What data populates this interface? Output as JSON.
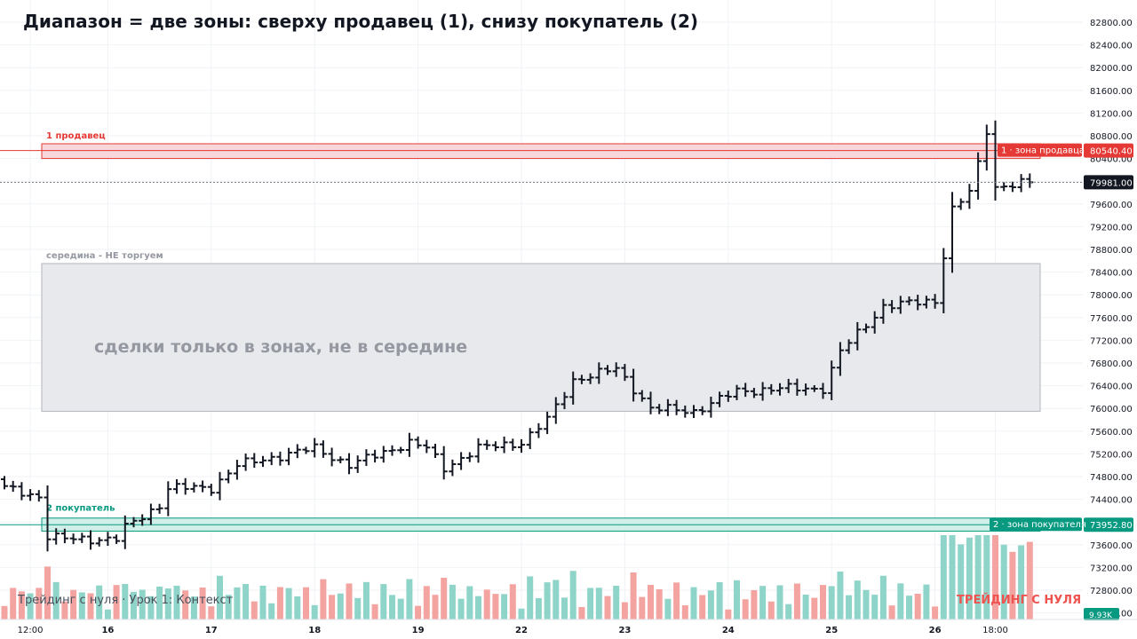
{
  "title": "Диапазон = две зоны: сверху продавец (1), снизу покупатель (2)",
  "watermark_left": "Трейдинг с нуля · Урок 1: Контекст",
  "watermark_right": "ТРЕЙДИНГ С НУЛЯ",
  "colors": {
    "seller": "#e53935",
    "seller_fill": "#f8d7da",
    "buyer": "#089981",
    "buyer_fill": "#d0efe9",
    "middle_fill": "#e8e9ec",
    "middle_text": "#9598a1",
    "bar": "#131722",
    "vol_up": "#8fd4c8",
    "vol_down": "#f4a4a0",
    "axis_text": "#131722",
    "grid": "#f0f2f5",
    "last_price_bg": "#131722"
  },
  "chart_data": {
    "type": "ohlc",
    "ylim": [
      71950,
      83050
    ],
    "y_ticks": [
      72400,
      72800,
      73200,
      73600,
      74000,
      74400,
      74800,
      75200,
      75600,
      76000,
      76400,
      76800,
      77200,
      77600,
      78000,
      78400,
      78800,
      79200,
      79600,
      80000,
      80400,
      80800,
      81200,
      81600,
      82000,
      82400,
      82800
    ],
    "x_ticks": [
      {
        "label": "12:00",
        "bar": 3
      },
      {
        "label": "16",
        "bar": 12
      },
      {
        "label": "17",
        "bar": 24
      },
      {
        "label": "18",
        "bar": 36
      },
      {
        "label": "19",
        "bar": 48
      },
      {
        "label": "22",
        "bar": 60
      },
      {
        "label": "23",
        "bar": 72
      },
      {
        "label": "24",
        "bar": 84
      },
      {
        "label": "25",
        "bar": 96
      },
      {
        "label": "26",
        "bar": 108
      },
      {
        "label": "18:00",
        "bar": 115
      }
    ],
    "close_keypoints": [
      [
        0,
        74600
      ],
      [
        4,
        74450
      ],
      [
        5,
        73750
      ],
      [
        7,
        73700
      ],
      [
        13,
        73700
      ],
      [
        14,
        73900
      ],
      [
        18,
        74300
      ],
      [
        19,
        74600
      ],
      [
        24,
        74600
      ],
      [
        27,
        75000
      ],
      [
        36,
        75300
      ],
      [
        40,
        75000
      ],
      [
        47,
        75400
      ],
      [
        49,
        75300
      ],
      [
        51,
        74950
      ],
      [
        55,
        75300
      ],
      [
        60,
        75400
      ],
      [
        63,
        75800
      ],
      [
        66,
        76500
      ],
      [
        71,
        76700
      ],
      [
        75,
        76000
      ],
      [
        80,
        75950
      ],
      [
        85,
        76300
      ],
      [
        90,
        76350
      ],
      [
        95,
        76350
      ],
      [
        97,
        77000
      ],
      [
        102,
        77800
      ],
      [
        108,
        77900
      ],
      [
        109,
        78700
      ],
      [
        110,
        79500
      ],
      [
        112,
        79800
      ],
      [
        113,
        80300
      ],
      [
        114,
        80900
      ],
      [
        115,
        79900
      ],
      [
        119,
        79981
      ]
    ],
    "noise": 55,
    "total_bars": 120,
    "last_price": 79981.0,
    "last_price_label": "79981.00",
    "annotations": [
      {
        "text": "1 продавец",
        "role": "seller_label"
      },
      {
        "text": "середина - НЕ торгуем",
        "role": "middle_label"
      },
      {
        "text": "сделки только в зонах, не в середине",
        "role": "middle_note"
      },
      {
        "text": "2 покупатель",
        "role": "buyer_label"
      }
    ],
    "zones": [
      {
        "name": "1 · зона продавца",
        "role": "seller",
        "from": 80400,
        "to": 80660,
        "price": 80540.4,
        "price_label": "80540.40"
      },
      {
        "name": "середина",
        "role": "middle",
        "from": 75950,
        "to": 78550
      },
      {
        "name": "2 · зона покупателя",
        "role": "buyer",
        "from": 73840,
        "to": 74070,
        "price": 73952.8,
        "price_label": "73952.80"
      }
    ],
    "volume_last_label": "9.93K"
  }
}
